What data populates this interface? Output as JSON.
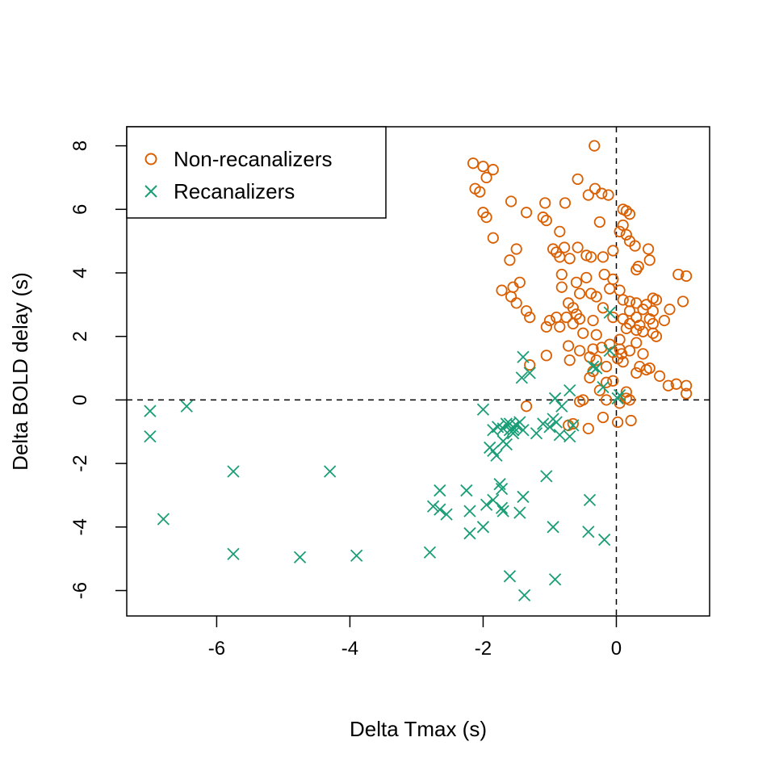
{
  "chart_data": {
    "type": "scatter",
    "title": "",
    "xlabel": "Delta Tmax (s)",
    "ylabel": "Delta BOLD delay (s)",
    "xlim": [
      -7.35,
      1.4
    ],
    "ylim": [
      -6.8,
      8.6
    ],
    "xticks": [
      -6,
      -4,
      -2,
      0
    ],
    "yticks": [
      -6,
      -4,
      -2,
      0,
      2,
      4,
      6,
      8
    ],
    "xtick_labels": [
      "-6",
      "-4",
      "-2",
      "0"
    ],
    "ytick_labels": [
      "-6",
      "-4",
      "-2",
      "0",
      "2",
      "4",
      "6",
      "8"
    ],
    "grid": false,
    "reference_lines": {
      "x": 0,
      "y": 0,
      "style": "dashed"
    },
    "legend_position": "top-left",
    "series": [
      {
        "name": "Non-recanalizers",
        "marker": "circle",
        "color": "#D95F02",
        "points": [
          [
            -0.33,
            8.0
          ],
          [
            -2.15,
            7.45
          ],
          [
            -2.0,
            7.35
          ],
          [
            -1.85,
            7.25
          ],
          [
            -1.95,
            7.0
          ],
          [
            -0.58,
            6.95
          ],
          [
            -2.12,
            6.65
          ],
          [
            -2.05,
            6.55
          ],
          [
            -0.32,
            6.65
          ],
          [
            -0.42,
            6.45
          ],
          [
            -0.22,
            6.5
          ],
          [
            -0.12,
            6.45
          ],
          [
            -1.58,
            6.25
          ],
          [
            -1.07,
            6.2
          ],
          [
            -0.77,
            6.2
          ],
          [
            -2.0,
            5.9
          ],
          [
            -1.95,
            5.75
          ],
          [
            -1.35,
            5.9
          ],
          [
            -1.1,
            5.75
          ],
          [
            -1.05,
            5.65
          ],
          [
            0.1,
            6.0
          ],
          [
            0.15,
            5.95
          ],
          [
            0.2,
            5.85
          ],
          [
            -0.25,
            5.6
          ],
          [
            0.1,
            5.5
          ],
          [
            0.05,
            5.3
          ],
          [
            0.15,
            5.2
          ],
          [
            -0.85,
            5.3
          ],
          [
            -1.85,
            5.1
          ],
          [
            0.2,
            5.0
          ],
          [
            0.28,
            4.85
          ],
          [
            -1.5,
            4.75
          ],
          [
            -0.95,
            4.75
          ],
          [
            -0.78,
            4.8
          ],
          [
            -0.9,
            4.65
          ],
          [
            -0.58,
            4.8
          ],
          [
            0.48,
            4.75
          ],
          [
            -0.05,
            4.7
          ],
          [
            -0.85,
            4.5
          ],
          [
            -0.7,
            4.45
          ],
          [
            -0.45,
            4.55
          ],
          [
            -0.38,
            4.5
          ],
          [
            -0.2,
            4.5
          ],
          [
            0.5,
            4.4
          ],
          [
            -1.6,
            4.4
          ],
          [
            0.33,
            4.2
          ],
          [
            0.3,
            4.1
          ],
          [
            -0.82,
            3.95
          ],
          [
            -0.18,
            3.95
          ],
          [
            0.93,
            3.95
          ],
          [
            1.05,
            3.9
          ],
          [
            -0.45,
            3.85
          ],
          [
            -0.05,
            3.8
          ],
          [
            -1.45,
            3.7
          ],
          [
            -1.55,
            3.55
          ],
          [
            -0.6,
            3.7
          ],
          [
            -1.72,
            3.45
          ],
          [
            -0.82,
            3.55
          ],
          [
            -0.55,
            3.35
          ],
          [
            -0.1,
            3.5
          ],
          [
            0.05,
            3.45
          ],
          [
            -0.38,
            3.35
          ],
          [
            -0.3,
            3.25
          ],
          [
            0.1,
            3.15
          ],
          [
            0.2,
            3.1
          ],
          [
            0.55,
            3.2
          ],
          [
            0.6,
            3.15
          ],
          [
            -1.58,
            3.25
          ],
          [
            -1.5,
            3.05
          ],
          [
            -0.72,
            3.05
          ],
          [
            0.3,
            3.05
          ],
          [
            0.45,
            3.0
          ],
          [
            1.0,
            3.1
          ],
          [
            -0.65,
            2.9
          ],
          [
            -0.2,
            2.9
          ],
          [
            0.2,
            2.8
          ],
          [
            0.4,
            2.85
          ],
          [
            0.55,
            2.8
          ],
          [
            0.8,
            2.85
          ],
          [
            -1.35,
            2.8
          ],
          [
            -0.9,
            2.6
          ],
          [
            -0.75,
            2.6
          ],
          [
            -0.55,
            2.55
          ],
          [
            -0.35,
            2.5
          ],
          [
            -0.05,
            2.6
          ],
          [
            0.1,
            2.55
          ],
          [
            0.3,
            2.6
          ],
          [
            0.5,
            2.55
          ],
          [
            0.72,
            2.5
          ],
          [
            -1.3,
            2.6
          ],
          [
            -1.0,
            2.5
          ],
          [
            -0.6,
            2.7
          ],
          [
            -0.65,
            2.4
          ],
          [
            0.2,
            2.4
          ],
          [
            0.35,
            2.35
          ],
          [
            0.55,
            2.4
          ],
          [
            -0.85,
            2.3
          ],
          [
            0.15,
            2.25
          ],
          [
            -1.05,
            2.3
          ],
          [
            0.3,
            2.2
          ],
          [
            0.4,
            2.15
          ],
          [
            0.55,
            2.1
          ],
          [
            -0.3,
            2.05
          ],
          [
            -0.5,
            2.1
          ],
          [
            0.6,
            2.0
          ],
          [
            0.05,
            1.9
          ],
          [
            0.3,
            1.8
          ],
          [
            -0.1,
            1.75
          ],
          [
            -0.22,
            1.65
          ],
          [
            -0.35,
            1.6
          ],
          [
            -0.72,
            1.7
          ],
          [
            0.05,
            1.6
          ],
          [
            0.2,
            1.55
          ],
          [
            -0.55,
            1.55
          ],
          [
            -0.05,
            1.5
          ],
          [
            0.08,
            1.45
          ],
          [
            0.4,
            1.45
          ],
          [
            -1.05,
            1.4
          ],
          [
            -0.4,
            1.35
          ],
          [
            0.02,
            1.3
          ],
          [
            -0.3,
            1.25
          ],
          [
            -0.7,
            1.25
          ],
          [
            0.1,
            1.2
          ],
          [
            -0.15,
            1.05
          ],
          [
            0.35,
            1.05
          ],
          [
            0.45,
            0.95
          ],
          [
            0.5,
            1.0
          ],
          [
            0.3,
            0.85
          ],
          [
            -1.3,
            1.1
          ],
          [
            -0.35,
            0.9
          ],
          [
            -0.4,
            0.7
          ],
          [
            0.65,
            0.75
          ],
          [
            -0.15,
            0.55
          ],
          [
            0.78,
            0.45
          ],
          [
            0.9,
            0.5
          ],
          [
            -0.05,
            0.6
          ],
          [
            1.05,
            0.45
          ],
          [
            -0.25,
            0.3
          ],
          [
            0.15,
            0.25
          ],
          [
            0.15,
            0.05
          ],
          [
            0.2,
            0.0
          ],
          [
            1.05,
            0.2
          ],
          [
            -0.15,
            0.0
          ],
          [
            -0.55,
            -0.05
          ],
          [
            0.05,
            -0.1
          ],
          [
            -1.35,
            -0.2
          ],
          [
            -0.2,
            -0.55
          ],
          [
            0.22,
            -0.65
          ],
          [
            0.02,
            -0.7
          ],
          [
            -0.72,
            -0.8
          ],
          [
            -0.65,
            -0.75
          ],
          [
            -0.42,
            -0.9
          ],
          [
            -0.5,
            0.0
          ]
        ]
      },
      {
        "name": "Recanalizers",
        "marker": "x",
        "color": "#1B9E77",
        "points": [
          [
            -7.0,
            -0.35
          ],
          [
            -6.45,
            -0.2
          ],
          [
            -7.0,
            -1.15
          ],
          [
            -6.8,
            -3.75
          ],
          [
            -5.75,
            -2.25
          ],
          [
            -5.75,
            -4.85
          ],
          [
            -4.3,
            -2.25
          ],
          [
            -4.75,
            -4.95
          ],
          [
            -3.9,
            -4.9
          ],
          [
            -2.8,
            -4.8
          ],
          [
            -2.65,
            -2.85
          ],
          [
            -2.75,
            -3.35
          ],
          [
            -2.65,
            -3.45
          ],
          [
            -2.55,
            -3.6
          ],
          [
            -2.25,
            -2.85
          ],
          [
            -2.2,
            -3.5
          ],
          [
            -2.2,
            -4.2
          ],
          [
            -2.0,
            -4.0
          ],
          [
            -1.95,
            -3.3
          ],
          [
            -1.85,
            -3.15
          ],
          [
            -1.75,
            -2.65
          ],
          [
            -1.72,
            -2.8
          ],
          [
            -1.72,
            -3.4
          ],
          [
            -1.7,
            -3.5
          ],
          [
            -1.4,
            -3.05
          ],
          [
            -1.45,
            -3.55
          ],
          [
            -1.6,
            -5.55
          ],
          [
            -1.38,
            -6.15
          ],
          [
            -1.05,
            -2.4
          ],
          [
            -0.95,
            -4.0
          ],
          [
            -0.92,
            -5.65
          ],
          [
            -0.4,
            -3.15
          ],
          [
            -0.42,
            -4.15
          ],
          [
            -0.18,
            -4.4
          ],
          [
            -2.0,
            -0.3
          ],
          [
            -1.9,
            -1.5
          ],
          [
            -1.85,
            -1.6
          ],
          [
            -1.8,
            -1.75
          ],
          [
            -1.7,
            -1.3
          ],
          [
            -1.65,
            -1.4
          ],
          [
            -1.85,
            -0.95
          ],
          [
            -1.78,
            -0.85
          ],
          [
            -1.7,
            -0.9
          ],
          [
            -1.65,
            -0.75
          ],
          [
            -1.6,
            -0.95
          ],
          [
            -1.55,
            -0.85
          ],
          [
            -1.55,
            -1.05
          ],
          [
            -1.5,
            -0.8
          ],
          [
            -1.45,
            -0.7
          ],
          [
            -1.4,
            -0.95
          ],
          [
            -1.4,
            1.35
          ],
          [
            -1.42,
            0.7
          ],
          [
            -1.3,
            0.85
          ],
          [
            -1.2,
            -1.05
          ],
          [
            -1.1,
            -0.75
          ],
          [
            -1.0,
            -0.85
          ],
          [
            -0.95,
            -0.6
          ],
          [
            -0.9,
            -0.7
          ],
          [
            -0.85,
            -1.1
          ],
          [
            -0.92,
            0.05
          ],
          [
            -0.7,
            0.3
          ],
          [
            -0.7,
            -1.15
          ],
          [
            -0.65,
            -0.8
          ],
          [
            -0.82,
            -0.2
          ],
          [
            -0.35,
            1.05
          ],
          [
            -0.3,
            1.0
          ],
          [
            -0.2,
            0.4
          ],
          [
            -0.1,
            1.55
          ],
          [
            -0.1,
            2.75
          ],
          [
            0.02,
            0.05
          ],
          [
            0.05,
            0.15
          ],
          [
            -1.6,
            -0.75
          ],
          [
            -1.55,
            -0.95
          ]
        ]
      }
    ]
  }
}
